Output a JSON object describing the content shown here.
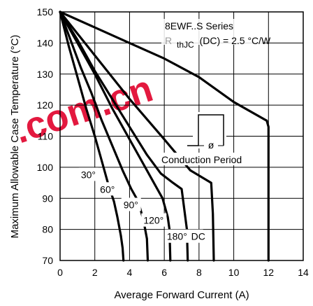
{
  "chart_data": {
    "type": "line",
    "title": "",
    "xlabel": "Average Forward Current (A)",
    "ylabel": "Maximum Allowable Case Temperature (°C)",
    "xlim": [
      0,
      14
    ],
    "ylim": [
      70,
      150
    ],
    "x_ticks": [
      "0",
      "2",
      "4",
      "6",
      "8",
      "10",
      "12",
      "14"
    ],
    "y_ticks": [
      "70",
      "80",
      "90",
      "100",
      "110",
      "120",
      "130",
      "140",
      "150"
    ],
    "grid": true,
    "legend": "none",
    "annotations": {
      "series_name": "8EWF..S Series",
      "rth_main": "R",
      "rth_sub": "thJC",
      "rth_rest": "(DC) = 2.5 °C/W",
      "conduction_label": "Conduction Period",
      "conduction_symbol": "ø",
      "watermark": ".com.cn"
    },
    "series": [
      {
        "name": "30°",
        "points": [
          [
            0,
            150
          ],
          [
            0.5,
            139
          ],
          [
            1,
            129
          ],
          [
            1.5,
            119
          ],
          [
            2,
            110
          ],
          [
            2.4,
            102
          ],
          [
            2.8,
            94
          ],
          [
            3.1,
            89
          ],
          [
            3.3,
            84
          ],
          [
            3.5,
            78
          ],
          [
            3.6,
            74
          ],
          [
            3.65,
            70
          ]
        ]
      },
      {
        "name": "60°",
        "points": [
          [
            0,
            150
          ],
          [
            0.6,
            141
          ],
          [
            1.2,
            132
          ],
          [
            1.8,
            124
          ],
          [
            2.4,
            115
          ],
          [
            3,
            107
          ],
          [
            3.6,
            99
          ],
          [
            4.1,
            93
          ],
          [
            4.5,
            89
          ],
          [
            4.8,
            83
          ],
          [
            5,
            77
          ],
          [
            5.05,
            70
          ]
        ]
      },
      {
        "name": "90°",
        "points": [
          [
            0,
            150
          ],
          [
            1,
            140
          ],
          [
            2,
            130
          ],
          [
            3,
            119
          ],
          [
            4,
            109
          ],
          [
            4.8,
            101
          ],
          [
            5.5,
            94
          ],
          [
            5.9,
            90
          ],
          [
            6.2,
            84
          ],
          [
            6.3,
            80
          ],
          [
            6.35,
            70
          ]
        ]
      },
      {
        "name": "120°",
        "points": [
          [
            0,
            150
          ],
          [
            1,
            141
          ],
          [
            2,
            131
          ],
          [
            3,
            122
          ],
          [
            4,
            113
          ],
          [
            5,
            104
          ],
          [
            5.8,
            98
          ],
          [
            6.5,
            95
          ],
          [
            7,
            93
          ],
          [
            7.3,
            80
          ],
          [
            7.35,
            70
          ]
        ]
      },
      {
        "name": "180°",
        "points": [
          [
            0,
            150
          ],
          [
            2,
            136
          ],
          [
            4,
            122
          ],
          [
            6,
            109
          ],
          [
            7.5,
            99
          ],
          [
            8.7,
            95
          ],
          [
            8.8,
            85
          ],
          [
            8.85,
            70
          ]
        ]
      },
      {
        "name": "DC",
        "points": [
          [
            0,
            150
          ],
          [
            2,
            145
          ],
          [
            4,
            140
          ],
          [
            6,
            135
          ],
          [
            8,
            129
          ],
          [
            10,
            121
          ],
          [
            11.9,
            115
          ],
          [
            12,
            113
          ],
          [
            12,
            70
          ]
        ]
      }
    ]
  }
}
